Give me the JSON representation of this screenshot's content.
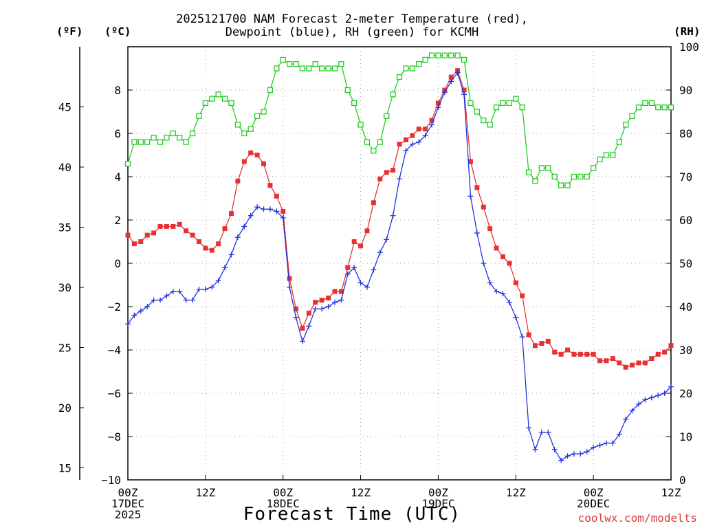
{
  "page": {
    "title_line1": "2025121700 NAM Forecast 2-meter Temperature (red),",
    "title_line2": "Dewpoint (blue), RH (green) for KCMH",
    "unit_f": "(ºF)",
    "unit_c": "(ºC)",
    "unit_rh": "(RH)",
    "xlabel": "Forecast Time (UTC)",
    "credit": "coolwx.com/modelts",
    "credit_color": "#d83a3a"
  },
  "colors": {
    "temperature": "#e63232",
    "dewpoint": "#2233dd",
    "rh": "#22cc22",
    "grid": "#a0a0a0",
    "axis": "#000000"
  },
  "chart_data": {
    "type": "line",
    "title": "2025121700 NAM Forecast 2-meter Temperature (red), Dewpoint (blue), RH (green) for KCMH",
    "xlabel": "Forecast Time (UTC)",
    "x_unit": "forecast hour from 2025-12-17 00Z",
    "xlim": [
      0,
      84
    ],
    "x_ticks": [
      {
        "value": 0,
        "lines": [
          "00Z",
          "17DEC",
          "2025"
        ]
      },
      {
        "value": 12,
        "lines": [
          "12Z"
        ]
      },
      {
        "value": 24,
        "lines": [
          "00Z",
          "18DEC"
        ]
      },
      {
        "value": 36,
        "lines": [
          "12Z"
        ]
      },
      {
        "value": 48,
        "lines": [
          "00Z",
          "19DEC"
        ]
      },
      {
        "value": 60,
        "lines": [
          "12Z"
        ]
      },
      {
        "value": 72,
        "lines": [
          "00Z",
          "20DEC"
        ]
      },
      {
        "value": 84,
        "lines": [
          "12Z"
        ]
      }
    ],
    "y_left": {
      "label": "(ºC)",
      "range": [
        -10,
        10
      ],
      "ticks": [
        -10,
        -8,
        -6,
        -4,
        -2,
        0,
        2,
        4,
        6,
        8
      ]
    },
    "y_far_left": {
      "label": "(ºF)",
      "range": [
        14,
        50
      ],
      "ticks": [
        15,
        20,
        25,
        30,
        35,
        40,
        45
      ]
    },
    "y_right": {
      "label": "(RH)",
      "range": [
        0,
        100
      ],
      "ticks": [
        0,
        10,
        20,
        30,
        40,
        50,
        60,
        70,
        80,
        90,
        100
      ]
    },
    "grid": true,
    "series": [
      {
        "name": "2-meter Temperature",
        "unit": "C",
        "color": "red",
        "marker": "filled-square",
        "points": [
          [
            0,
            1.3
          ],
          [
            1,
            0.9
          ],
          [
            2,
            1.0
          ],
          [
            3,
            1.3
          ],
          [
            4,
            1.4
          ],
          [
            5,
            1.7
          ],
          [
            6,
            1.7
          ],
          [
            7,
            1.7
          ],
          [
            8,
            1.8
          ],
          [
            9,
            1.5
          ],
          [
            10,
            1.3
          ],
          [
            11,
            1.0
          ],
          [
            12,
            0.7
          ],
          [
            13,
            0.6
          ],
          [
            14,
            0.9
          ],
          [
            15,
            1.6
          ],
          [
            16,
            2.3
          ],
          [
            17,
            3.8
          ],
          [
            18,
            4.7
          ],
          [
            19,
            5.1
          ],
          [
            20,
            5.0
          ],
          [
            21,
            4.6
          ],
          [
            22,
            3.6
          ],
          [
            23,
            3.1
          ],
          [
            24,
            2.4
          ],
          [
            25,
            -0.7
          ],
          [
            26,
            -2.1
          ],
          [
            27,
            -3.0
          ],
          [
            28,
            -2.3
          ],
          [
            29,
            -1.8
          ],
          [
            30,
            -1.7
          ],
          [
            31,
            -1.6
          ],
          [
            32,
            -1.3
          ],
          [
            33,
            -1.3
          ],
          [
            34,
            -0.2
          ],
          [
            35,
            1.0
          ],
          [
            36,
            0.8
          ],
          [
            37,
            1.5
          ],
          [
            38,
            2.8
          ],
          [
            39,
            3.9
          ],
          [
            40,
            4.2
          ],
          [
            41,
            4.3
          ],
          [
            42,
            5.5
          ],
          [
            43,
            5.7
          ],
          [
            44,
            5.9
          ],
          [
            45,
            6.2
          ],
          [
            46,
            6.2
          ],
          [
            47,
            6.6
          ],
          [
            48,
            7.4
          ],
          [
            49,
            8.0
          ],
          [
            50,
            8.6
          ],
          [
            51,
            8.9
          ],
          [
            52,
            8.0
          ],
          [
            53,
            4.7
          ],
          [
            54,
            3.5
          ],
          [
            55,
            2.6
          ],
          [
            56,
            1.6
          ],
          [
            57,
            0.7
          ],
          [
            58,
            0.3
          ],
          [
            59,
            0.0
          ],
          [
            60,
            -0.9
          ],
          [
            61,
            -1.5
          ],
          [
            62,
            -3.3
          ],
          [
            63,
            -3.8
          ],
          [
            64,
            -3.7
          ],
          [
            65,
            -3.6
          ],
          [
            66,
            -4.1
          ],
          [
            67,
            -4.2
          ],
          [
            68,
            -4.0
          ],
          [
            69,
            -4.2
          ],
          [
            70,
            -4.2
          ],
          [
            71,
            -4.2
          ],
          [
            72,
            -4.2
          ],
          [
            73,
            -4.5
          ],
          [
            74,
            -4.5
          ],
          [
            75,
            -4.4
          ],
          [
            76,
            -4.6
          ],
          [
            77,
            -4.8
          ],
          [
            78,
            -4.7
          ],
          [
            79,
            -4.6
          ],
          [
            80,
            -4.6
          ],
          [
            81,
            -4.4
          ],
          [
            82,
            -4.2
          ],
          [
            83,
            -4.1
          ],
          [
            84,
            -3.8
          ]
        ]
      },
      {
        "name": "Dewpoint",
        "unit": "C",
        "color": "blue",
        "marker": "plus",
        "points": [
          [
            0,
            -2.8
          ],
          [
            1,
            -2.4
          ],
          [
            2,
            -2.2
          ],
          [
            3,
            -2.0
          ],
          [
            4,
            -1.7
          ],
          [
            5,
            -1.7
          ],
          [
            6,
            -1.5
          ],
          [
            7,
            -1.3
          ],
          [
            8,
            -1.3
          ],
          [
            9,
            -1.7
          ],
          [
            10,
            -1.7
          ],
          [
            11,
            -1.2
          ],
          [
            12,
            -1.2
          ],
          [
            13,
            -1.1
          ],
          [
            14,
            -0.8
          ],
          [
            15,
            -0.2
          ],
          [
            16,
            0.4
          ],
          [
            17,
            1.2
          ],
          [
            18,
            1.7
          ],
          [
            19,
            2.2
          ],
          [
            20,
            2.6
          ],
          [
            21,
            2.5
          ],
          [
            22,
            2.5
          ],
          [
            23,
            2.4
          ],
          [
            24,
            2.1
          ],
          [
            25,
            -1.1
          ],
          [
            26,
            -2.5
          ],
          [
            27,
            -3.6
          ],
          [
            28,
            -2.9
          ],
          [
            29,
            -2.1
          ],
          [
            30,
            -2.1
          ],
          [
            31,
            -2.0
          ],
          [
            32,
            -1.8
          ],
          [
            33,
            -1.7
          ],
          [
            34,
            -0.5
          ],
          [
            35,
            -0.2
          ],
          [
            36,
            -0.9
          ],
          [
            37,
            -1.1
          ],
          [
            38,
            -0.3
          ],
          [
            39,
            0.5
          ],
          [
            40,
            1.1
          ],
          [
            41,
            2.2
          ],
          [
            42,
            3.9
          ],
          [
            43,
            5.2
          ],
          [
            44,
            5.5
          ],
          [
            45,
            5.6
          ],
          [
            46,
            5.9
          ],
          [
            47,
            6.4
          ],
          [
            48,
            7.2
          ],
          [
            49,
            7.9
          ],
          [
            50,
            8.4
          ],
          [
            51,
            8.8
          ],
          [
            52,
            7.8
          ],
          [
            53,
            3.1
          ],
          [
            54,
            1.4
          ],
          [
            55,
            0.0
          ],
          [
            56,
            -0.9
          ],
          [
            57,
            -1.3
          ],
          [
            58,
            -1.4
          ],
          [
            59,
            -1.8
          ],
          [
            60,
            -2.5
          ],
          [
            61,
            -3.4
          ],
          [
            62,
            -7.6
          ],
          [
            63,
            -8.6
          ],
          [
            64,
            -7.8
          ],
          [
            65,
            -7.8
          ],
          [
            66,
            -8.6
          ],
          [
            67,
            -9.1
          ],
          [
            68,
            -8.9
          ],
          [
            69,
            -8.8
          ],
          [
            70,
            -8.8
          ],
          [
            71,
            -8.7
          ],
          [
            72,
            -8.5
          ],
          [
            73,
            -8.4
          ],
          [
            74,
            -8.3
          ],
          [
            75,
            -8.3
          ],
          [
            76,
            -7.9
          ],
          [
            77,
            -7.2
          ],
          [
            78,
            -6.8
          ],
          [
            79,
            -6.5
          ],
          [
            80,
            -6.3
          ],
          [
            81,
            -6.2
          ],
          [
            82,
            -6.1
          ],
          [
            83,
            -6.0
          ],
          [
            84,
            -5.7
          ]
        ]
      },
      {
        "name": "Relative Humidity",
        "unit": "%",
        "color": "green",
        "marker": "open-square",
        "points": [
          [
            0,
            73
          ],
          [
            1,
            78
          ],
          [
            2,
            78
          ],
          [
            3,
            78
          ],
          [
            4,
            79
          ],
          [
            5,
            78
          ],
          [
            6,
            79
          ],
          [
            7,
            80
          ],
          [
            8,
            79
          ],
          [
            9,
            78
          ],
          [
            10,
            80
          ],
          [
            11,
            84
          ],
          [
            12,
            87
          ],
          [
            13,
            88
          ],
          [
            14,
            89
          ],
          [
            15,
            88
          ],
          [
            16,
            87
          ],
          [
            17,
            82
          ],
          [
            18,
            80
          ],
          [
            19,
            81
          ],
          [
            20,
            84
          ],
          [
            21,
            85
          ],
          [
            22,
            90
          ],
          [
            23,
            95
          ],
          [
            24,
            97
          ],
          [
            25,
            96
          ],
          [
            26,
            96
          ],
          [
            27,
            95
          ],
          [
            28,
            95
          ],
          [
            29,
            96
          ],
          [
            30,
            95
          ],
          [
            31,
            95
          ],
          [
            32,
            95
          ],
          [
            33,
            96
          ],
          [
            34,
            90
          ],
          [
            35,
            87
          ],
          [
            36,
            82
          ],
          [
            37,
            78
          ],
          [
            38,
            76
          ],
          [
            39,
            78
          ],
          [
            40,
            84
          ],
          [
            41,
            89
          ],
          [
            42,
            93
          ],
          [
            43,
            95
          ],
          [
            44,
            95
          ],
          [
            45,
            96
          ],
          [
            46,
            97
          ],
          [
            47,
            98
          ],
          [
            48,
            98
          ],
          [
            49,
            98
          ],
          [
            50,
            98
          ],
          [
            51,
            98
          ],
          [
            52,
            97
          ],
          [
            53,
            87
          ],
          [
            54,
            85
          ],
          [
            55,
            83
          ],
          [
            56,
            82
          ],
          [
            57,
            86
          ],
          [
            58,
            87
          ],
          [
            59,
            87
          ],
          [
            60,
            88
          ],
          [
            61,
            86
          ],
          [
            62,
            71
          ],
          [
            63,
            69
          ],
          [
            64,
            72
          ],
          [
            65,
            72
          ],
          [
            66,
            70
          ],
          [
            67,
            68
          ],
          [
            68,
            68
          ],
          [
            69,
            70
          ],
          [
            70,
            70
          ],
          [
            71,
            70
          ],
          [
            72,
            72
          ],
          [
            73,
            74
          ],
          [
            74,
            75
          ],
          [
            75,
            75
          ],
          [
            76,
            78
          ],
          [
            77,
            82
          ],
          [
            78,
            84
          ],
          [
            79,
            86
          ],
          [
            80,
            87
          ],
          [
            81,
            87
          ],
          [
            82,
            86
          ],
          [
            83,
            86
          ],
          [
            84,
            86
          ]
        ]
      }
    ]
  }
}
